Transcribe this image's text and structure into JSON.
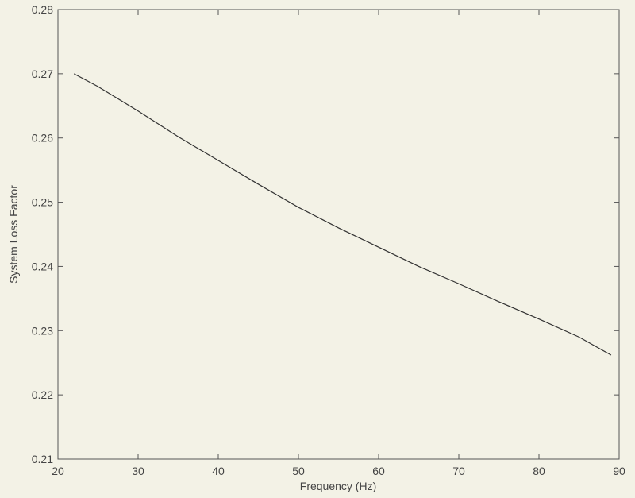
{
  "chart_data": {
    "type": "line",
    "title": "",
    "xlabel": "Frequency (Hz)",
    "ylabel": "System Loss Factor",
    "xlim": [
      20,
      90
    ],
    "ylim": [
      0.21,
      0.28
    ],
    "grid": false,
    "x_ticks": [
      "20",
      "30",
      "40",
      "50",
      "60",
      "70",
      "80",
      "90"
    ],
    "y_ticks": [
      "0.21",
      "0.22",
      "0.23",
      "0.24",
      "0.25",
      "0.26",
      "0.27",
      "0.28"
    ],
    "series": [
      {
        "color": "#333333",
        "x": [
          22,
          25,
          30,
          35,
          40,
          45,
          50,
          55,
          60,
          65,
          70,
          75,
          80,
          85,
          89
        ],
        "y": [
          0.27,
          0.268,
          0.2642,
          0.2602,
          0.2565,
          0.2528,
          0.2492,
          0.246,
          0.243,
          0.24,
          0.2373,
          0.2345,
          0.2318,
          0.229,
          0.2262
        ]
      }
    ]
  }
}
